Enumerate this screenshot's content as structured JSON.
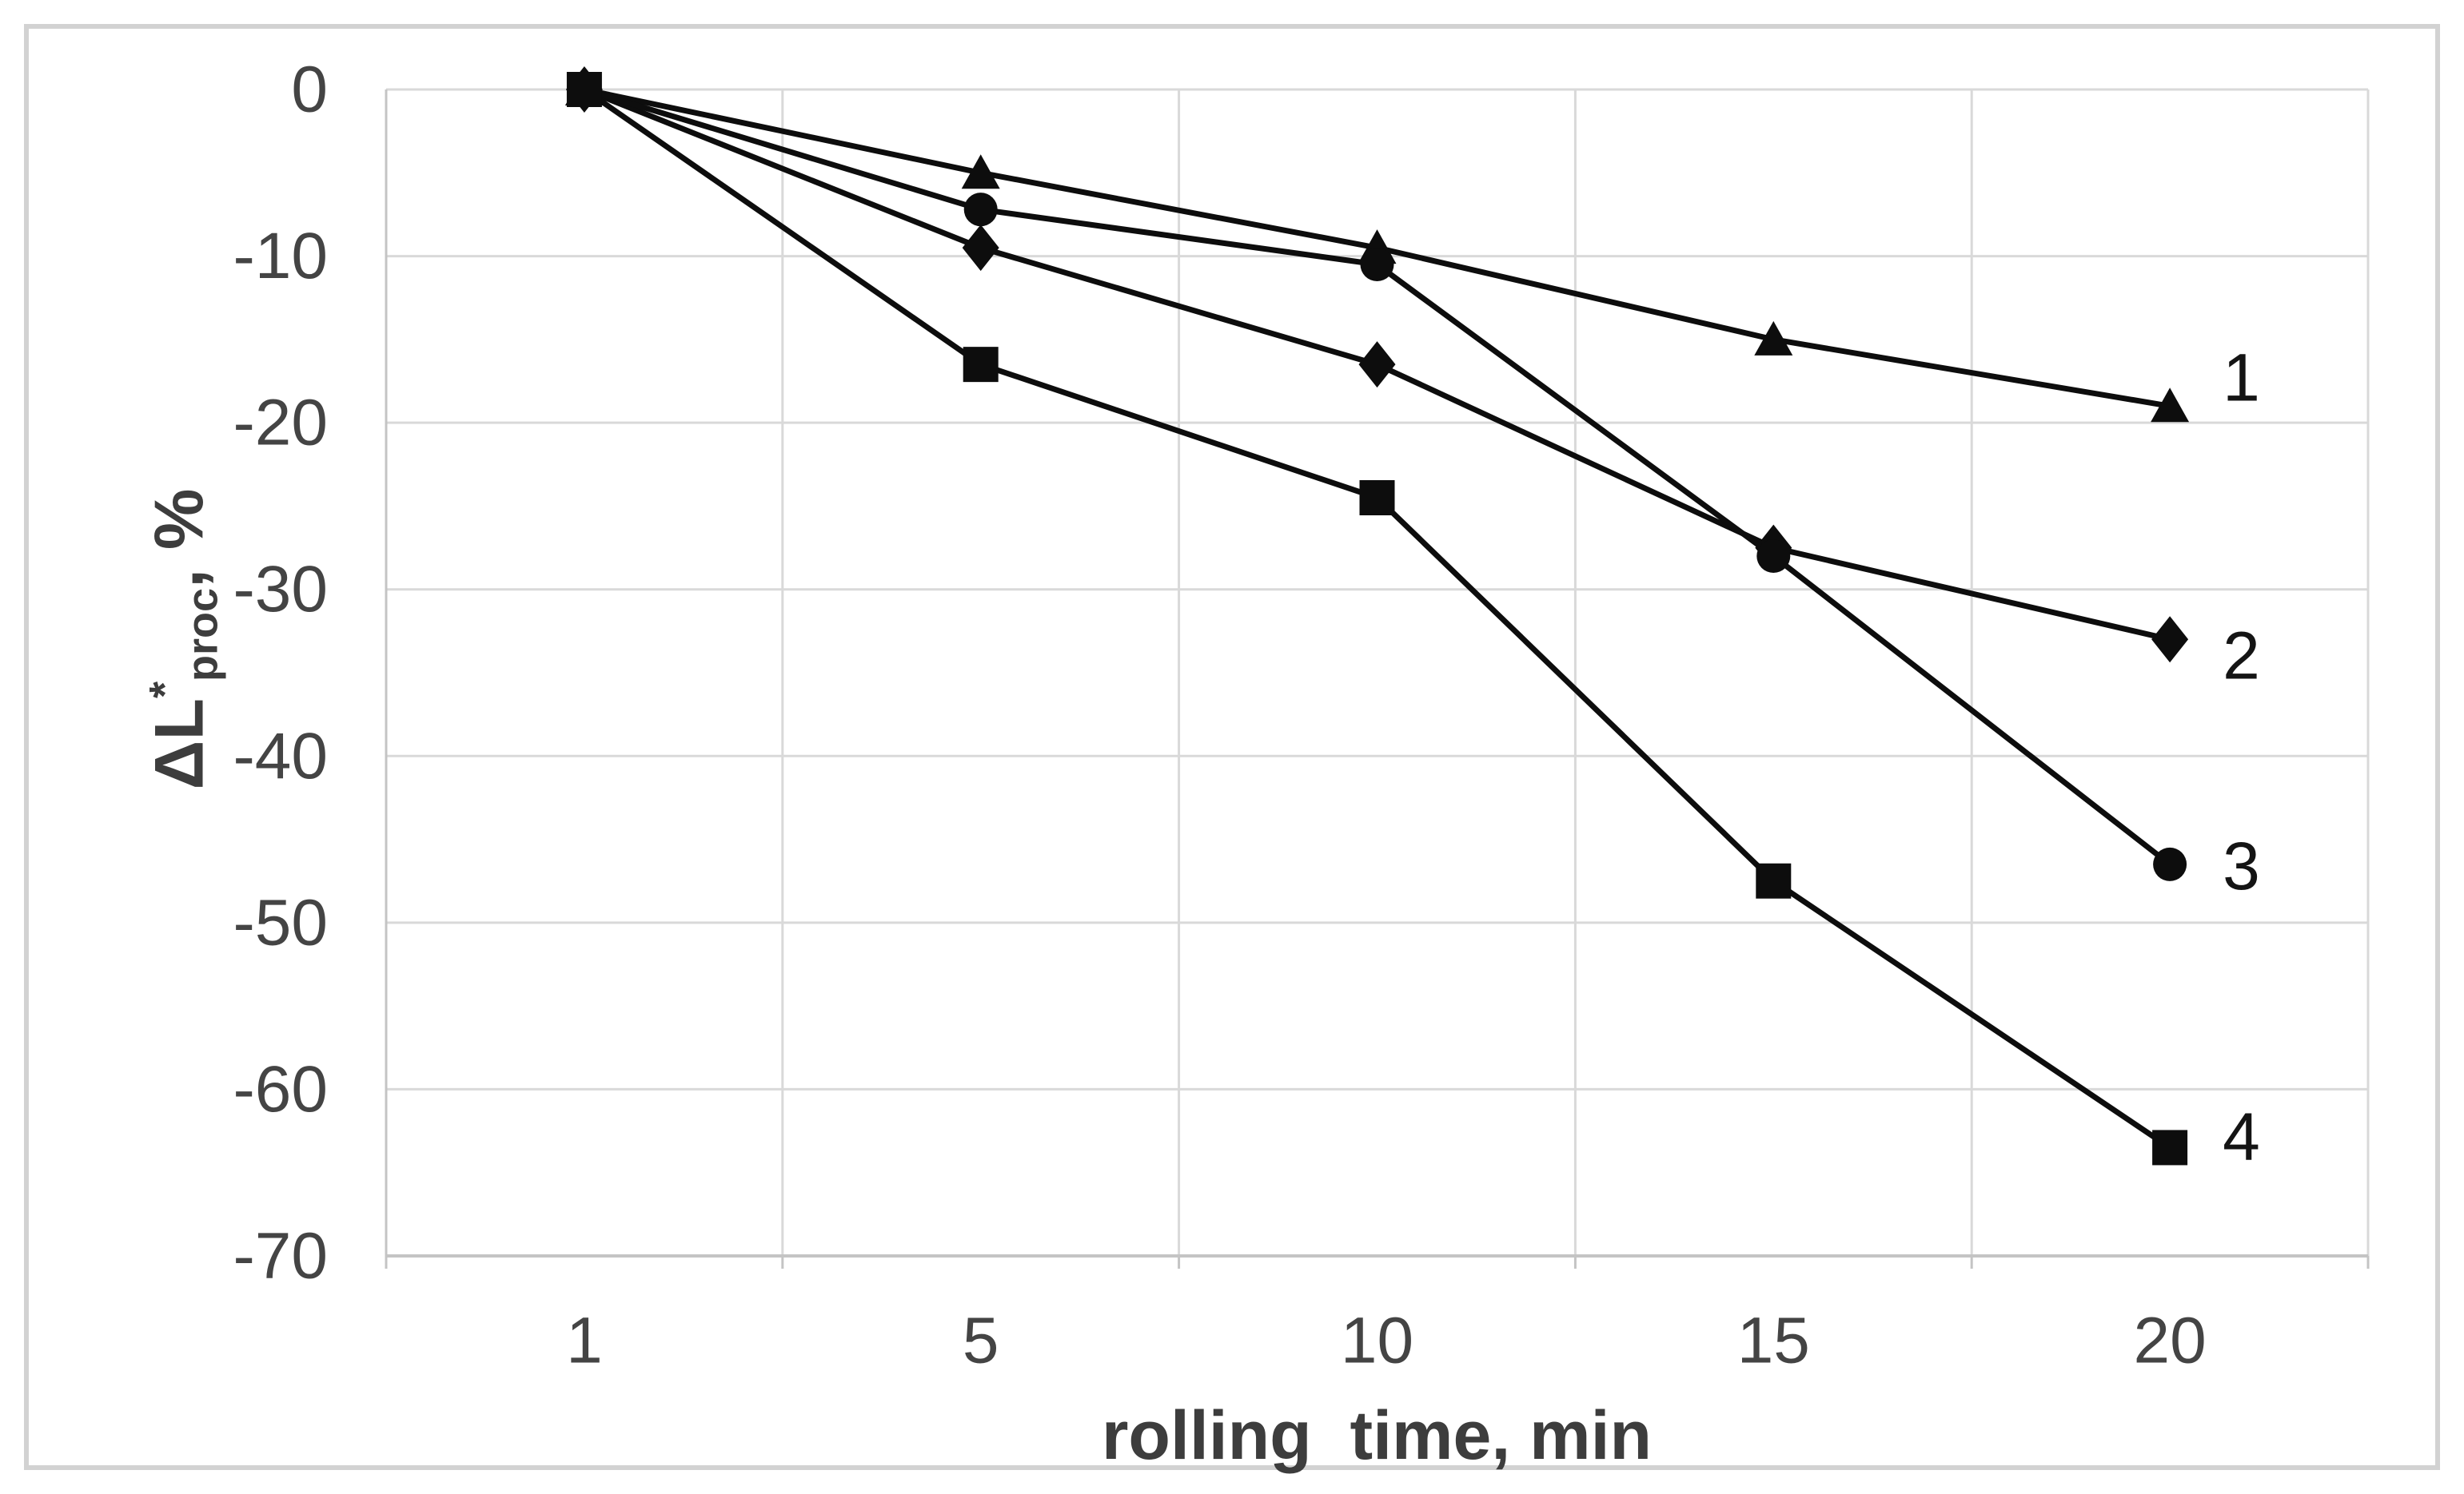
{
  "figure": {
    "background_color": "#ffffff",
    "border_color": "#d2d2d2"
  },
  "chart_data": {
    "type": "line",
    "title": "",
    "xlabel": "rolling  time, min",
    "ylabel": "ΔL*proc, %",
    "ylabel_parts": {
      "base": "ΔL",
      "superscript": "*",
      "subscript": "proc",
      "unit": ", %"
    },
    "categories": [
      1,
      5,
      10,
      15,
      20
    ],
    "x_tick_labels": [
      "1",
      "5",
      "10",
      "15",
      "20"
    ],
    "yticks": [
      0,
      -10,
      -20,
      -30,
      -40,
      -50,
      -60,
      -70
    ],
    "y_tick_labels": [
      "0",
      "-10",
      "-20",
      "-30",
      "-40",
      "-50",
      "-60",
      "-70"
    ],
    "ylim": [
      -70,
      0
    ],
    "grid": true,
    "legend_position": "labels at right end of each line",
    "series": [
      {
        "label": "1",
        "marker": "triangle",
        "values": [
          0,
          -5,
          -9.5,
          -15,
          -19
        ]
      },
      {
        "label": "2",
        "marker": "diamond",
        "values": [
          0,
          -9.5,
          -16.5,
          -27.5,
          -33
        ]
      },
      {
        "label": "3",
        "marker": "circle",
        "values": [
          0,
          -7.2,
          -10.5,
          -28,
          -46.5
        ]
      },
      {
        "label": "4",
        "marker": "square",
        "values": [
          0,
          -16.5,
          -24.5,
          -47.5,
          -63.5
        ]
      }
    ],
    "colors": {
      "line": "#0d0d0d",
      "marker": "#0d0d0d",
      "gridline": "#d9d9d9",
      "axis_line": "#c4c4c4",
      "tick_label": "#444444",
      "axis_title": "#3d3d3d"
    }
  }
}
